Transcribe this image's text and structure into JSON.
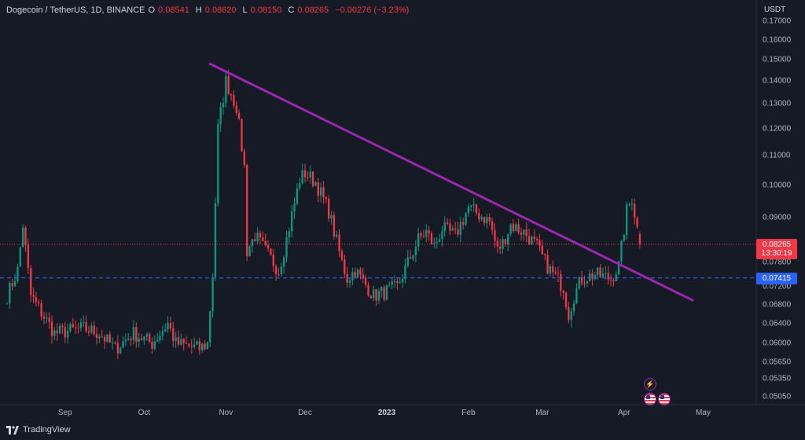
{
  "header": {
    "symbol": "Dogecoin / TetherUS, 1D, BINANCE",
    "open_label": "O",
    "open": "0.08541",
    "high_label": "H",
    "high": "0.08620",
    "low_label": "L",
    "low": "0.08150",
    "close_label": "C",
    "close": "0.08265",
    "change": "−0.00276 (−3.23%)"
  },
  "axis_unit": "USDT",
  "current_price": {
    "value": "0.08265",
    "countdown": "13:30:19",
    "color": "#f23645"
  },
  "horizontal_level": {
    "value": "0.07415",
    "color": "#2962ff"
  },
  "trendline_color": "#9c27b0",
  "branding": "TradingView",
  "icons": {
    "event_flash": "lightning-icon",
    "flag_1": "us-flag-icon",
    "flag_2": "us-flag-icon"
  },
  "chart_data": {
    "type": "candlestick",
    "y_scale": "log",
    "ylim": [
      0.0495,
      0.172
    ],
    "y_ticks": [
      "0.17000",
      "0.16000",
      "0.15000",
      "0.14000",
      "0.13000",
      "0.12000",
      "0.11000",
      "0.10000",
      "0.09000",
      "0.07800",
      "0.07200",
      "0.06800",
      "0.06400",
      "0.06000",
      "0.05650",
      "0.05350",
      "0.05050"
    ],
    "x_ticks": [
      "Sep",
      "Oct",
      "Nov",
      "Dec",
      "2023",
      "Feb",
      "Mar",
      "Apr",
      "May"
    ],
    "x_tick_bold": "2023",
    "up_color": "#089981",
    "down_color": "#f23645",
    "anchors": [
      [
        "2022-08-10",
        0.07
      ],
      [
        "2022-08-14",
        0.076
      ],
      [
        "2022-08-16",
        0.088
      ],
      [
        "2022-08-19",
        0.07
      ],
      [
        "2022-08-28",
        0.062
      ],
      [
        "2022-09-08",
        0.063
      ],
      [
        "2022-09-14",
        0.062
      ],
      [
        "2022-09-20",
        0.059
      ],
      [
        "2022-09-27",
        0.062
      ],
      [
        "2022-10-04",
        0.06
      ],
      [
        "2022-10-10",
        0.064
      ],
      [
        "2022-10-13",
        0.06
      ],
      [
        "2022-10-22",
        0.059
      ],
      [
        "2022-10-25",
        0.06
      ],
      [
        "2022-10-27",
        0.075
      ],
      [
        "2022-10-29",
        0.12
      ],
      [
        "2022-11-01",
        0.14
      ],
      [
        "2022-11-05",
        0.129
      ],
      [
        "2022-11-08",
        0.106
      ],
      [
        "2022-11-09",
        0.081
      ],
      [
        "2022-11-12",
        0.085
      ],
      [
        "2022-11-21",
        0.076
      ],
      [
        "2022-11-24",
        0.084
      ],
      [
        "2022-11-29",
        0.102
      ],
      [
        "2022-12-01",
        0.104
      ],
      [
        "2022-12-05",
        0.101
      ],
      [
        "2022-12-10",
        0.092
      ],
      [
        "2022-12-15",
        0.078
      ],
      [
        "2022-12-17",
        0.074
      ],
      [
        "2022-12-20",
        0.076
      ],
      [
        "2022-12-27",
        0.07
      ],
      [
        "2023-01-01",
        0.071
      ],
      [
        "2023-01-05",
        0.072
      ],
      [
        "2023-01-13",
        0.084
      ],
      [
        "2023-01-16",
        0.086
      ],
      [
        "2023-01-19",
        0.082
      ],
      [
        "2023-01-22",
        0.087
      ],
      [
        "2023-01-27",
        0.085
      ],
      [
        "2023-02-01",
        0.093
      ],
      [
        "2023-02-05",
        0.091
      ],
      [
        "2023-02-09",
        0.089
      ],
      [
        "2023-02-12",
        0.081
      ],
      [
        "2023-02-14",
        0.083
      ],
      [
        "2023-02-17",
        0.088
      ],
      [
        "2023-02-22",
        0.086
      ],
      [
        "2023-02-27",
        0.082
      ],
      [
        "2023-03-02",
        0.078
      ],
      [
        "2023-03-04",
        0.076
      ],
      [
        "2023-03-09",
        0.072
      ],
      [
        "2023-03-11",
        0.066
      ],
      [
        "2023-03-13",
        0.07
      ],
      [
        "2023-03-16",
        0.074
      ],
      [
        "2023-03-21",
        0.075
      ],
      [
        "2023-03-27",
        0.074
      ],
      [
        "2023-03-30",
        0.077
      ],
      [
        "2023-04-02",
        0.092
      ],
      [
        "2023-04-04",
        0.096
      ],
      [
        "2023-04-06",
        0.087
      ],
      [
        "2023-04-07",
        0.0826
      ]
    ],
    "last_candle": {
      "open": 0.08541,
      "high": 0.0862,
      "low": 0.0815,
      "close": 0.08265
    },
    "trendline": {
      "start": [
        "2022-10-26",
        0.148
      ],
      "end": [
        "2023-04-27",
        0.069
      ]
    },
    "horizontal_line": 0.07415,
    "last_price_line": 0.08265
  }
}
